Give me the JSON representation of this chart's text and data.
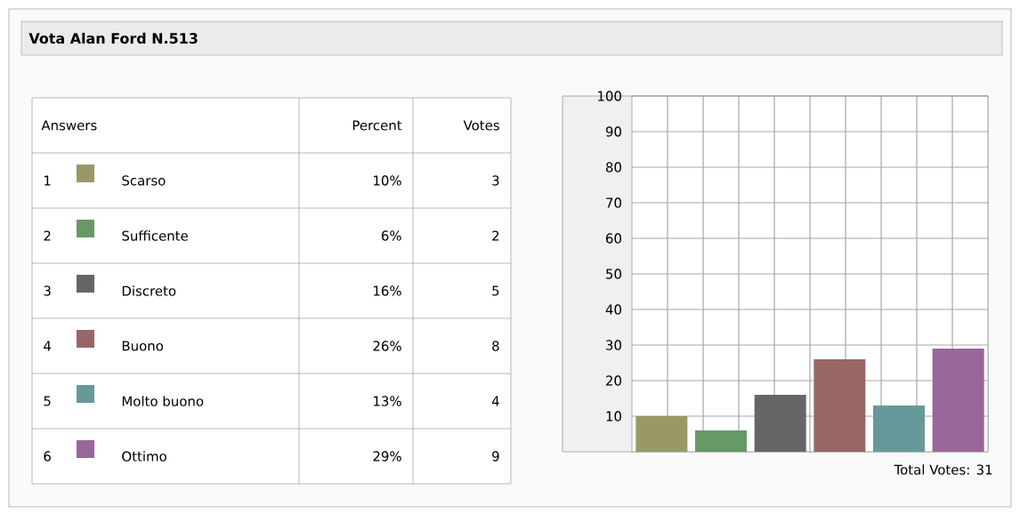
{
  "chart_data": {
    "type": "bar",
    "title": "Vota Alan Ford N.513",
    "categories": [
      null,
      null,
      null,
      null,
      null,
      null
    ],
    "series": [
      {
        "name": "Scarso",
        "color": "#999966",
        "values": [
          10,
          null,
          null,
          null,
          null,
          null
        ]
      },
      {
        "name": "Sufficente",
        "color": "#669966",
        "values": [
          null,
          6,
          null,
          null,
          null,
          null
        ]
      },
      {
        "name": "Discreto",
        "color": "#666666",
        "values": [
          null,
          null,
          16,
          null,
          null,
          null
        ]
      },
      {
        "name": "Buono",
        "color": "#996666",
        "values": [
          null,
          null,
          null,
          26,
          null,
          null
        ]
      },
      {
        "name": "Molto buono",
        "color": "#669999",
        "values": [
          null,
          null,
          null,
          null,
          13,
          null
        ]
      },
      {
        "name": "Ottimo",
        "color": "#996699",
        "values": [
          null,
          null,
          null,
          null,
          null,
          29
        ]
      }
    ],
    "ylim": [
      0,
      100
    ],
    "yticks": [
      10,
      20,
      30,
      40,
      50,
      60,
      70,
      80,
      90,
      100
    ],
    "grid": true,
    "tick_labels": "y",
    "legend": "left",
    "annotations": [
      "Answers",
      "Percent",
      "Votes",
      "1",
      "2",
      "3",
      "4",
      "5",
      "6",
      "10%",
      "6%",
      "16%",
      "26%",
      "13%",
      "29%",
      "3",
      "2",
      "5",
      "8",
      "4",
      "9",
      "Total Votes: 31"
    ]
  }
}
